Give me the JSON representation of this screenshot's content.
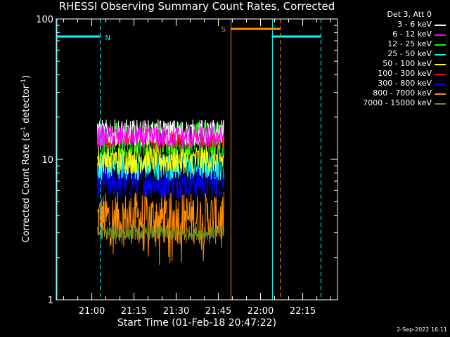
{
  "chart_data": {
    "type": "line",
    "title": "RHESSI Observing Summary Count Rates, Corrected",
    "xlabel": "Start Time (01-Feb-18 20:47:22)",
    "ylabel": "Corrected Count Rate (s",
    "ylabel_sup1": "-1",
    "ylabel_mid": " detector",
    "ylabel_sup2": "-1",
    "ylabel_end": ")",
    "y_scale": "log",
    "ylim": [
      1,
      100
    ],
    "xlim": [
      "20:47:22",
      "22:27:22"
    ],
    "y_ticks": [
      "1",
      "10",
      "100"
    ],
    "x_ticks": [
      {
        "t": "21:00",
        "min": 780
      },
      {
        "t": "21:15",
        "min": 1680
      },
      {
        "t": "21:30",
        "min": 2580
      },
      {
        "t": "21:45",
        "min": 3480
      },
      {
        "t": "22:00",
        "min": 4380
      },
      {
        "t": "22:15",
        "min": 5280
      }
    ],
    "legend_header": "Det 3, Att 0",
    "series": [
      {
        "name": "3 - 6 keV",
        "color": "#ffffff",
        "t_start": "21:02",
        "t_end": "21:47",
        "level": 15.5,
        "spread": 0.09
      },
      {
        "name": "6 - 12 keV",
        "color": "#ff00ff",
        "t_start": "21:02",
        "t_end": "21:47",
        "level": 14.5,
        "spread": 0.08
      },
      {
        "name": "12 - 25 keV",
        "color": "#00ff00",
        "t_start": "21:02",
        "t_end": "21:47",
        "level": 14.0,
        "spread": 0.12
      },
      {
        "name": "25 - 50 keV",
        "color": "#00ffff",
        "t_start": "21:02",
        "t_end": "21:47",
        "level": 9.0,
        "spread": 0.1
      },
      {
        "name": "50 - 100 keV",
        "color": "#ffff00",
        "t_start": "21:02",
        "t_end": "21:47",
        "level": 10.0,
        "spread": 0.1
      },
      {
        "name": "100 - 300 keV",
        "color": "#ff0000",
        "t_start": "21:02",
        "t_end": "21:47",
        "level": 14.0,
        "spread": 0.07
      },
      {
        "name": "300 - 800 keV",
        "color": "#0000ff",
        "t_start": "21:02",
        "t_end": "21:47",
        "level": 7.0,
        "spread": 0.12
      },
      {
        "name": "800 - 7000 keV",
        "color": "#ff8c00",
        "t_start": "21:02",
        "t_end": "21:47",
        "level": 3.8,
        "spread": 0.18
      },
      {
        "name": "7000 - 15000 keV",
        "color": "#6b8e23",
        "t_start": "21:02",
        "t_end": "21:47",
        "level": 3.0,
        "spread": 0.05
      }
    ],
    "night_flag": {
      "label": "N",
      "color": "#00ffff",
      "intervals": [
        [
          "20:47:22",
          "21:03:00"
        ],
        [
          "22:04:00",
          "22:21:30"
        ]
      ],
      "level": 75
    },
    "saa_flag": {
      "label": "S",
      "color": "#ff8c00",
      "intervals": [
        [
          "21:49:30",
          "22:07:00"
        ]
      ],
      "level": 85
    },
    "grid": false,
    "legend_position": "right"
  },
  "timestamp": "2-Sep-2022 16:11"
}
